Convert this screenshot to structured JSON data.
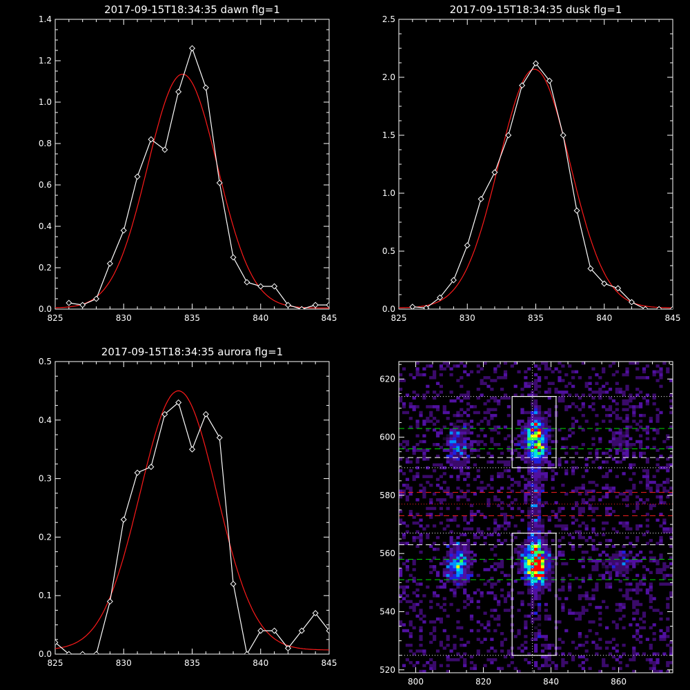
{
  "chart_data": [
    {
      "id": "dawn",
      "type": "line",
      "title": "2017-09-15T18:34:35 dawn flg=1",
      "xlim": [
        825,
        845
      ],
      "ylim": [
        0,
        1.4
      ],
      "xticks": [
        825,
        830,
        835,
        840,
        845
      ],
      "yticks": [
        0.0,
        0.2,
        0.4,
        0.6,
        0.8,
        1.0,
        1.2,
        1.4
      ],
      "ytick_labels": [
        "0.0",
        "0.2",
        "0.4",
        "0.6",
        "0.8",
        "1.0",
        "1.2",
        "1.4"
      ],
      "series": [
        {
          "role": "observed",
          "color": "#ffffff",
          "marker": "diamond",
          "x": [
            826,
            827,
            828,
            829,
            830,
            831,
            832,
            833,
            834,
            835,
            836,
            837,
            838,
            839,
            840,
            841,
            842,
            843,
            844,
            845
          ],
          "y": [
            0.03,
            0.02,
            0.05,
            0.22,
            0.38,
            0.64,
            0.82,
            0.77,
            1.05,
            1.26,
            1.07,
            0.61,
            0.25,
            0.13,
            0.11,
            0.11,
            0.02,
            0.0,
            0.02,
            0.02
          ]
        },
        {
          "role": "gaussian fit",
          "color": "#ff1a1a",
          "fit": {
            "amplitude": 1.13,
            "center": 834.3,
            "sigma": 2.55,
            "baseline": 0.005
          }
        }
      ]
    },
    {
      "id": "dusk",
      "type": "line",
      "title": "2017-09-15T18:34:35 dusk flg=1",
      "xlim": [
        825,
        845
      ],
      "ylim": [
        0,
        2.5
      ],
      "xticks": [
        825,
        830,
        835,
        840,
        845
      ],
      "yticks": [
        0.0,
        0.5,
        1.0,
        1.5,
        2.0,
        2.5
      ],
      "ytick_labels": [
        "0.0",
        "0.5",
        "1.0",
        "1.5",
        "2.0",
        "2.5"
      ],
      "series": [
        {
          "role": "observed",
          "color": "#ffffff",
          "marker": "diamond",
          "x": [
            826,
            827,
            828,
            829,
            830,
            831,
            832,
            833,
            834,
            835,
            836,
            837,
            838,
            839,
            840,
            841,
            842,
            843,
            844,
            845
          ],
          "y": [
            0.02,
            0.01,
            0.1,
            0.25,
            0.55,
            0.95,
            1.18,
            1.5,
            1.93,
            2.12,
            1.97,
            1.5,
            0.85,
            0.35,
            0.22,
            0.18,
            0.06,
            0.0,
            0.0,
            0.0
          ]
        },
        {
          "role": "gaussian fit",
          "color": "#ff1a1a",
          "fit": {
            "amplitude": 2.06,
            "center": 834.9,
            "sigma": 2.6,
            "baseline": 0.01
          }
        }
      ]
    },
    {
      "id": "aurora",
      "type": "line",
      "title": "2017-09-15T18:34:35 aurora flg=1",
      "xlim": [
        825,
        845
      ],
      "ylim": [
        0,
        0.5
      ],
      "xticks": [
        825,
        830,
        835,
        840,
        845
      ],
      "yticks": [
        0.0,
        0.1,
        0.2,
        0.3,
        0.4,
        0.5
      ],
      "ytick_labels": [
        "0.0",
        "0.1",
        "0.2",
        "0.3",
        "0.4",
        "0.5"
      ],
      "series": [
        {
          "role": "observed",
          "color": "#ffffff",
          "marker": "diamond",
          "x": [
            825,
            826,
            827,
            828,
            829,
            830,
            831,
            832,
            833,
            834,
            835,
            836,
            837,
            838,
            839,
            840,
            841,
            842,
            843,
            844,
            845
          ],
          "y": [
            0.02,
            0.0,
            0.0,
            0.0,
            0.09,
            0.23,
            0.31,
            0.32,
            0.41,
            0.43,
            0.35,
            0.41,
            0.37,
            0.12,
            0.0,
            0.04,
            0.04,
            0.01,
            0.04,
            0.07,
            0.04
          ]
        },
        {
          "role": "gaussian fit",
          "color": "#ff1a1a",
          "fit": {
            "amplitude": 0.443,
            "center": 834.0,
            "sigma": 2.8,
            "baseline": 0.007
          }
        }
      ]
    },
    {
      "id": "image",
      "type": "heatmap",
      "xlim": [
        795,
        876
      ],
      "ylim": [
        519,
        626
      ],
      "xticks": [
        800,
        820,
        840,
        860
      ],
      "yticks": [
        520,
        540,
        560,
        580,
        600,
        620
      ],
      "colormap": [
        "#1a0a2e",
        "#3a0a6a",
        "#5010a0",
        "#2020e0",
        "#0090ff",
        "#00e0e0",
        "#40ff40",
        "#ffff00",
        "#ff0000"
      ],
      "blobs": [
        {
          "x": 835,
          "y": 556,
          "sx": 2.6,
          "sy": 4.5,
          "amp": 1.0
        },
        {
          "x": 835,
          "y": 599,
          "sx": 2.4,
          "sy": 4.5,
          "amp": 0.75
        },
        {
          "x": 812,
          "y": 556,
          "sx": 2.5,
          "sy": 4.5,
          "amp": 0.55
        },
        {
          "x": 812,
          "y": 597,
          "sx": 2.5,
          "sy": 5.5,
          "amp": 0.35
        },
        {
          "x": 860,
          "y": 556,
          "sx": 3.5,
          "sy": 3.0,
          "amp": 0.25
        },
        {
          "x": 860,
          "y": 598,
          "sx": 3.0,
          "sy": 3.5,
          "amp": 0.18
        },
        {
          "x": 835,
          "y": 578,
          "sx": 1.6,
          "sy": 35.0,
          "amp": 0.25
        }
      ],
      "boxes": [
        {
          "x0": 828.5,
          "x1": 841.5,
          "y0": 589.5,
          "y1": 614
        },
        {
          "x0": 828.5,
          "x1": 841.5,
          "y0": 525,
          "y1": 567
        }
      ],
      "hlines": [
        {
          "y": 614,
          "color": "#ffffff",
          "style": "dotted"
        },
        {
          "y": 603,
          "color": "#00dd00",
          "style": "dashed"
        },
        {
          "y": 596,
          "color": "#00dd00",
          "style": "dashed"
        },
        {
          "y": 593,
          "color": "#ffffff",
          "style": "dashed"
        },
        {
          "y": 589.5,
          "color": "#ffffff",
          "style": "dotted"
        },
        {
          "y": 581,
          "color": "#ff2020",
          "style": "dashed"
        },
        {
          "y": 577,
          "color": "#ff2020",
          "style": "dotted"
        },
        {
          "y": 573,
          "color": "#ff2020",
          "style": "dashed"
        },
        {
          "y": 567,
          "color": "#ffffff",
          "style": "dotted"
        },
        {
          "y": 563,
          "color": "#ffffff",
          "style": "dashed"
        },
        {
          "y": 558,
          "color": "#00dd00",
          "style": "dashed"
        },
        {
          "y": 551,
          "color": "#00dd00",
          "style": "dashed"
        },
        {
          "y": 525,
          "color": "#ffffff",
          "style": "dotted"
        }
      ],
      "vlines": [
        {
          "x": 834.5,
          "color": "#ffffff",
          "style": "dotted"
        }
      ]
    }
  ]
}
